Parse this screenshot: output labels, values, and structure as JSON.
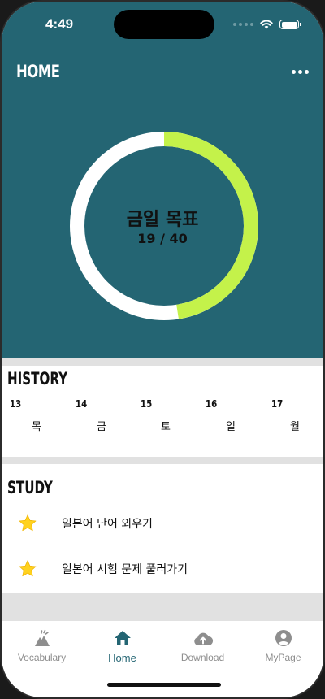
{
  "status_bar": {
    "time": "4:49"
  },
  "header": {
    "title": "HOME",
    "more_icon": "more-horizontal-icon"
  },
  "goal": {
    "label": "금일 목표",
    "count_text": "19 / 40",
    "progress": 0.475,
    "progress_color": "#c4f24a",
    "track_color": "#ffffff"
  },
  "history": {
    "title": "HISTORY",
    "days": [
      {
        "date": "13",
        "weekday": "목"
      },
      {
        "date": "14",
        "weekday": "금"
      },
      {
        "date": "15",
        "weekday": "토"
      },
      {
        "date": "16",
        "weekday": "일"
      },
      {
        "date": "17",
        "weekday": "월"
      }
    ]
  },
  "study": {
    "title": "STUDY",
    "items": [
      {
        "label": "일본어 단어 외우기",
        "icon": "star-icon"
      },
      {
        "label": "일본어 시험 문제 풀러가기",
        "icon": "star-icon"
      }
    ]
  },
  "tabs": [
    {
      "label": "Vocabulary",
      "icon": "mountain-icon",
      "active": false
    },
    {
      "label": "Home",
      "icon": "home-icon",
      "active": true
    },
    {
      "label": "Download",
      "icon": "cloud-upload-icon",
      "active": false
    },
    {
      "label": "MyPage",
      "icon": "account-circle-icon",
      "active": false
    }
  ],
  "colors": {
    "primary": "#246573",
    "accent": "#c4f24a",
    "star": "#ffd21f"
  }
}
